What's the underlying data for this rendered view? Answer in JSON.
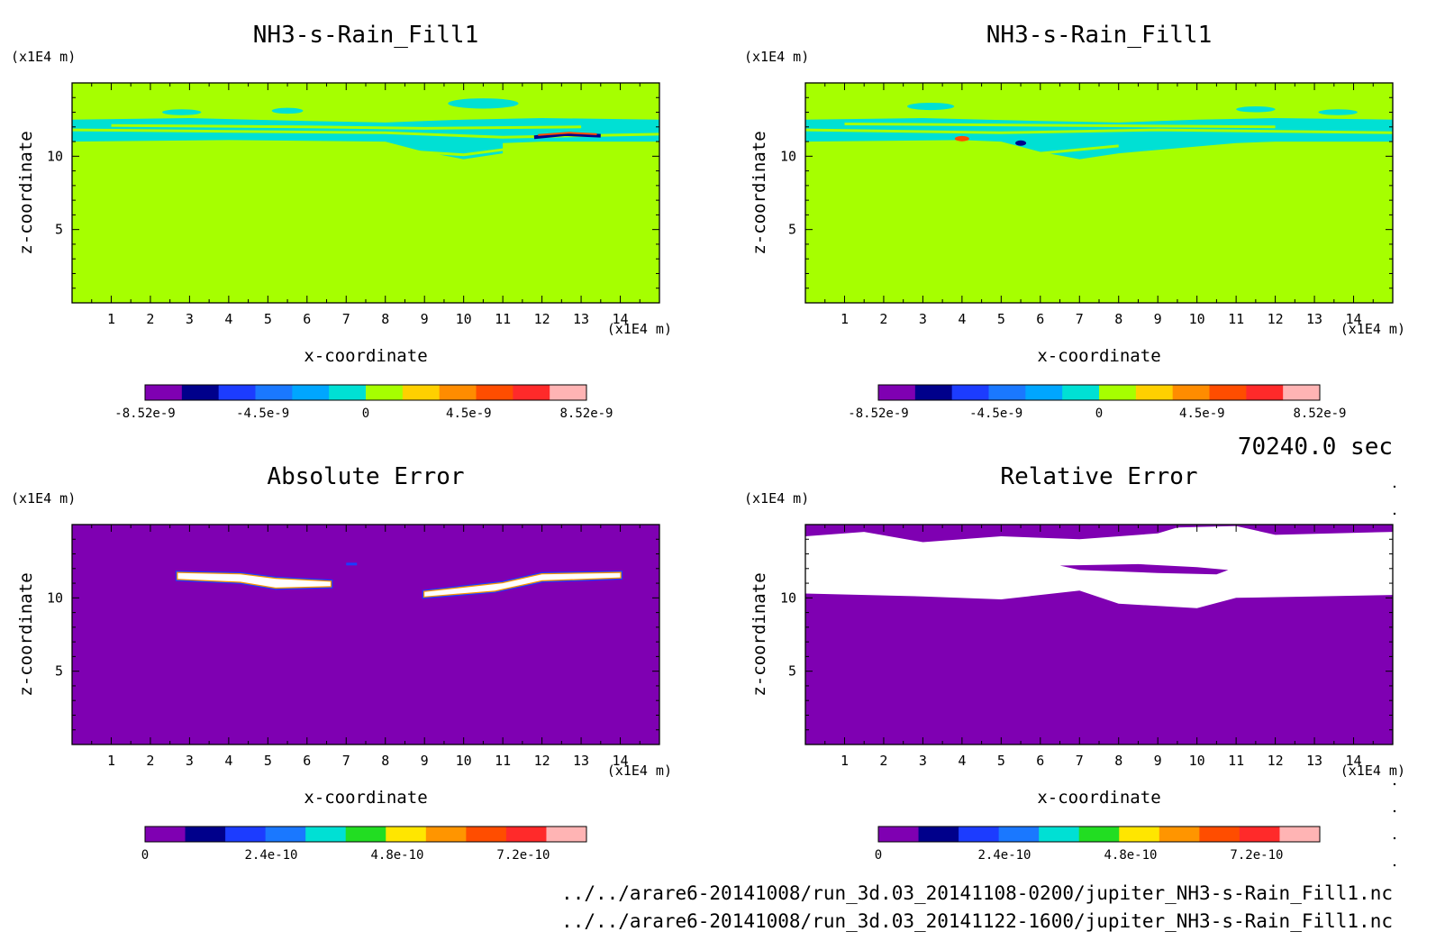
{
  "chart_data": [
    {
      "type": "heatmap",
      "title": "NH3-s-Rain_Fill1",
      "xlabel": "x-coordinate",
      "ylabel": "z-coordinate",
      "x_unit": "(x1E4 m)",
      "y_unit": "(x1E4 m)",
      "xlim": [
        0,
        15
      ],
      "ylim": [
        0,
        15
      ],
      "xticks": [
        "1",
        "2",
        "3",
        "4",
        "5",
        "6",
        "7",
        "8",
        "9",
        "10",
        "11",
        "12",
        "13",
        "14"
      ],
      "yticks": [
        "5",
        "10"
      ],
      "colorbar": {
        "colors": [
          "#7f00b2",
          "#00008b",
          "#1c3cff",
          "#1a78ff",
          "#00a6ff",
          "#00e0d4",
          "#a6ff00",
          "#ffd000",
          "#ff8c00",
          "#ff4d00",
          "#ff2a2a",
          "#ffb4b4"
        ],
        "tick_labels": [
          "-8.52e-9",
          "-4.5e-9",
          "0",
          "4.5e-9",
          "8.52e-9"
        ]
      },
      "background_value": 0,
      "layer_z_range": [
        10,
        12.5
      ]
    },
    {
      "type": "heatmap",
      "title": "NH3-s-Rain_Fill1",
      "xlabel": "x-coordinate",
      "ylabel": "z-coordinate",
      "x_unit": "(x1E4 m)",
      "y_unit": "(x1E4 m)",
      "xlim": [
        0,
        15
      ],
      "ylim": [
        0,
        15
      ],
      "xticks": [
        "1",
        "2",
        "3",
        "4",
        "5",
        "6",
        "7",
        "8",
        "9",
        "10",
        "11",
        "12",
        "13",
        "14"
      ],
      "yticks": [
        "5",
        "10"
      ],
      "colorbar": {
        "colors": [
          "#7f00b2",
          "#00008b",
          "#1c3cff",
          "#1a78ff",
          "#00a6ff",
          "#00e0d4",
          "#a6ff00",
          "#ffd000",
          "#ff8c00",
          "#ff4d00",
          "#ff2a2a",
          "#ffb4b4"
        ],
        "tick_labels": [
          "-8.52e-9",
          "-4.5e-9",
          "0",
          "4.5e-9",
          "8.52e-9"
        ]
      },
      "background_value": 0,
      "layer_z_range": [
        10,
        12.5
      ]
    },
    {
      "type": "heatmap",
      "title": "Absolute Error",
      "xlabel": "x-coordinate",
      "ylabel": "z-coordinate",
      "x_unit": "(x1E4 m)",
      "y_unit": "(x1E4 m)",
      "xlim": [
        0,
        15
      ],
      "ylim": [
        0,
        15
      ],
      "xticks": [
        "1",
        "2",
        "3",
        "4",
        "5",
        "6",
        "7",
        "8",
        "9",
        "10",
        "11",
        "12",
        "13",
        "14"
      ],
      "yticks": [
        "5",
        "10"
      ],
      "colorbar": {
        "colors": [
          "#7f00b2",
          "#00008b",
          "#1c3cff",
          "#1a78ff",
          "#00e0d4",
          "#22dd22",
          "#ffe600",
          "#ff9500",
          "#ff4d00",
          "#ff2a2a",
          "#ffb4b4"
        ],
        "tick_labels": [
          "0",
          "2.4e-10",
          "4.8e-10",
          "7.2e-10"
        ]
      },
      "background_value": 0
    },
    {
      "type": "heatmap",
      "title": "Relative Error",
      "xlabel": "x-coordinate",
      "ylabel": "z-coordinate",
      "x_unit": "(x1E4 m)",
      "y_unit": "(x1E4 m)",
      "xlim": [
        0,
        15
      ],
      "ylim": [
        0,
        15
      ],
      "xticks": [
        "1",
        "2",
        "3",
        "4",
        "5",
        "6",
        "7",
        "8",
        "9",
        "10",
        "11",
        "12",
        "13",
        "14"
      ],
      "yticks": [
        "5",
        "10"
      ],
      "colorbar": {
        "colors": [
          "#7f00b2",
          "#00008b",
          "#1c3cff",
          "#1a78ff",
          "#00e0d4",
          "#22dd22",
          "#ffe600",
          "#ff9500",
          "#ff4d00",
          "#ff2a2a",
          "#ffb4b4"
        ],
        "tick_labels": [
          "0",
          "2.4e-10",
          "4.8e-10",
          "7.2e-10"
        ]
      },
      "background_value": 0
    }
  ],
  "time_label": "70240.0 sec",
  "files": [
    "../../arare6-20141008/run_3d.03_20141108-0200/jupiter_NH3-s-Rain_Fill1.nc",
    "../../arare6-20141008/run_3d.03_20141122-1600/jupiter_NH3-s-Rain_Fill1.nc"
  ]
}
